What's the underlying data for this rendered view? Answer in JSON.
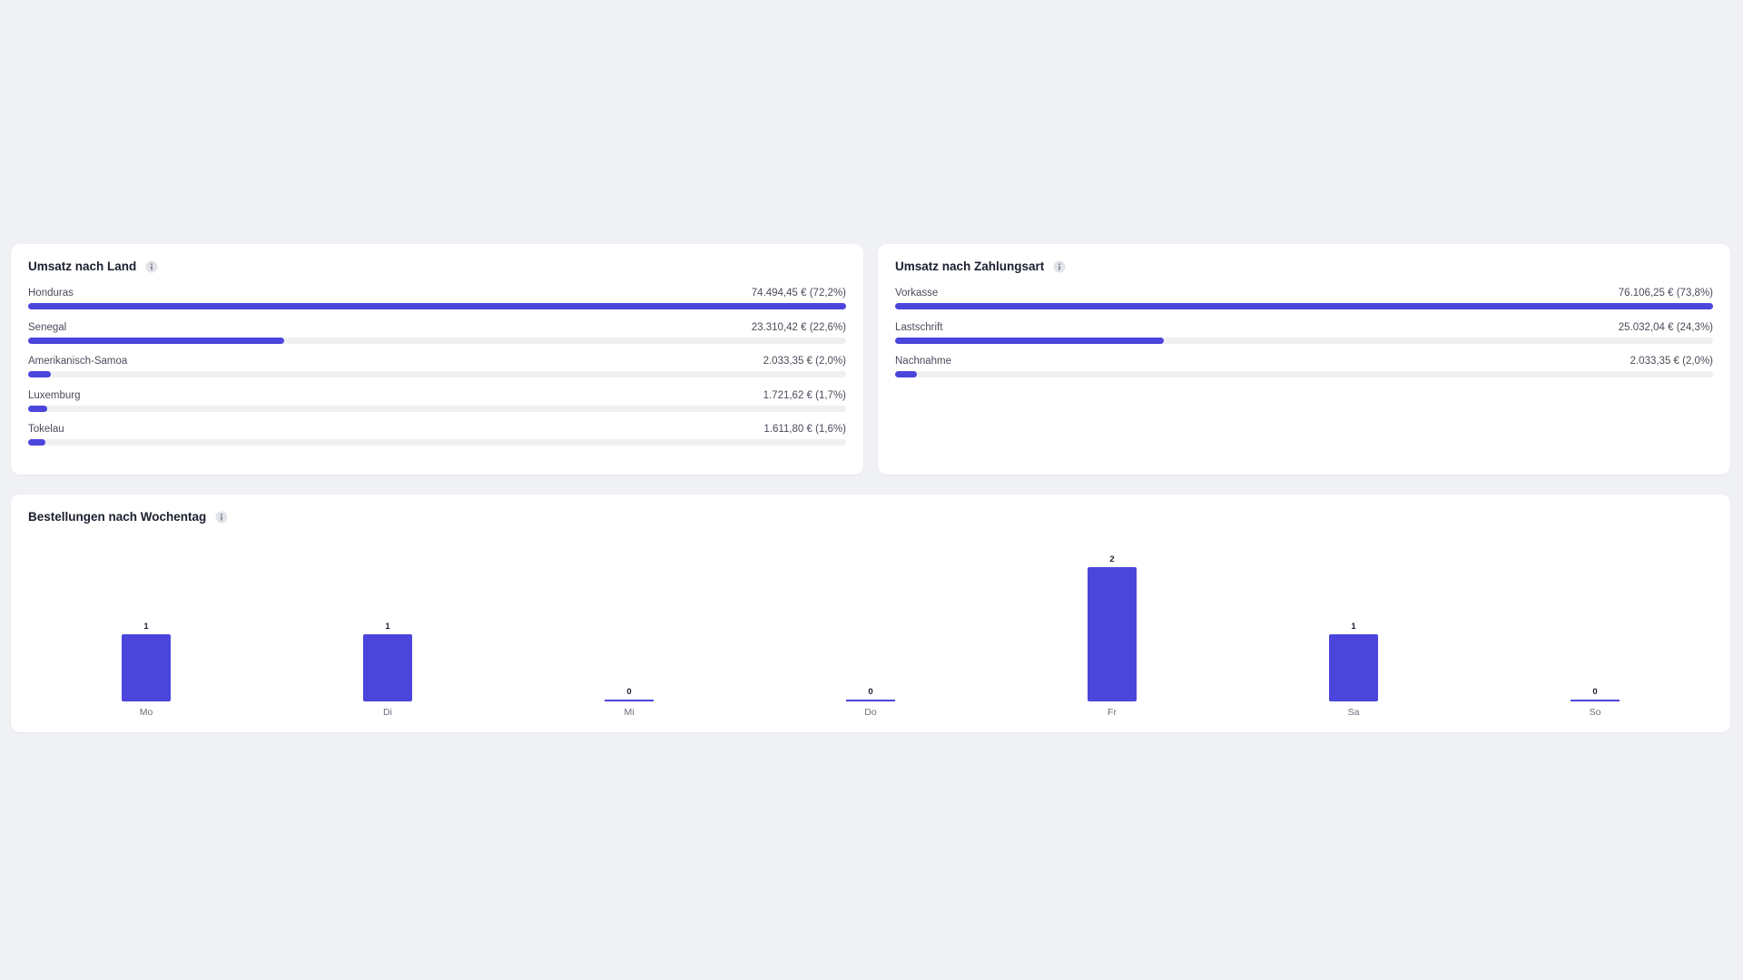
{
  "chart_data": [
    {
      "type": "progress",
      "title": "Umsatz nach Land",
      "categories": [
        "Honduras",
        "Senegal",
        "Amerikanisch-Samoa",
        "Luxemburg",
        "Tokelau"
      ],
      "values": [
        74494.45,
        23310.42,
        2033.35,
        1721.62,
        1611.8
      ],
      "value_labels": [
        "74.494,45 € (72,2%)",
        "23.310,42 € (22,6%)",
        "2.033,35 € (2,0%)",
        "1.721,62 € (1,7%)",
        "1.611,80 € (1,6%)"
      ],
      "color": "#4b45dc"
    },
    {
      "type": "progress",
      "title": "Umsatz nach Zahlungsart",
      "categories": [
        "Vorkasse",
        "Lastschrift",
        "Nachnahme"
      ],
      "values": [
        76106.25,
        25032.04,
        2033.35
      ],
      "value_labels": [
        "76.106,25 € (73,8%)",
        "25.032,04 € (24,3%)",
        "2.033,35 € (2,0%)"
      ],
      "color": "#4b45dc"
    },
    {
      "type": "bar",
      "title": "Bestellungen nach Wochentag",
      "categories": [
        "Mo",
        "Di",
        "Mi",
        "Do",
        "Fr",
        "Sa",
        "So"
      ],
      "values": [
        1,
        1,
        0,
        0,
        2,
        1,
        0
      ],
      "color": "#4b45dc"
    }
  ]
}
